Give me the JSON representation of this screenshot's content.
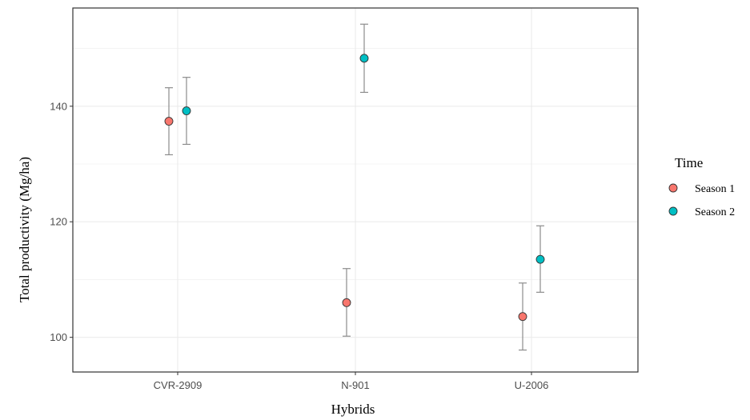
{
  "chart_data": {
    "type": "scatter",
    "title": "",
    "xlabel": "Hybrids",
    "ylabel": "Total productivity (Mg/ha)",
    "categories": [
      "CVR-2909",
      "N-901",
      "U-2006"
    ],
    "ylim": [
      94,
      157
    ],
    "yticks": [
      100,
      120,
      140
    ],
    "grid": true,
    "legend": {
      "title": "Time",
      "placement": "right"
    },
    "series": [
      {
        "name": "Season 1",
        "color": "#F8766D",
        "points": [
          {
            "category": "CVR-2909",
            "y": 137.4,
            "lower": 131.6,
            "upper": 143.2
          },
          {
            "category": "N-901",
            "y": 106.0,
            "lower": 100.2,
            "upper": 111.9
          },
          {
            "category": "U-2006",
            "y": 103.6,
            "lower": 97.8,
            "upper": 109.4
          }
        ]
      },
      {
        "name": "Season 2",
        "color": "#00BFC4",
        "points": [
          {
            "category": "CVR-2909",
            "y": 139.2,
            "lower": 133.4,
            "upper": 145.0
          },
          {
            "category": "N-901",
            "y": 148.3,
            "lower": 142.4,
            "upper": 154.2
          },
          {
            "category": "U-2006",
            "y": 113.5,
            "lower": 107.8,
            "upper": 119.3
          }
        ]
      }
    ]
  }
}
